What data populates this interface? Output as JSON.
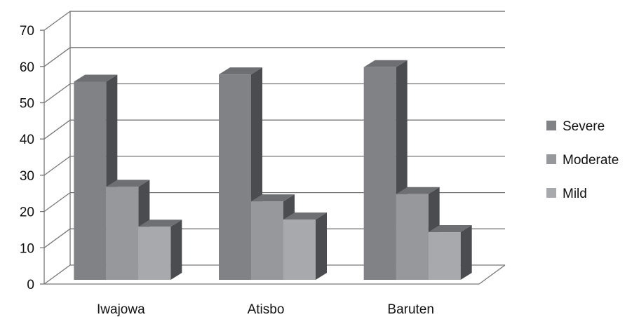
{
  "chart_data": {
    "type": "bar",
    "subtype": "3d-clustered-column",
    "categories": [
      "Iwajowa",
      "Atisbo",
      "Baruten"
    ],
    "series": [
      {
        "name": "Severe",
        "values": [
          56,
          58,
          60
        ],
        "color": "#808285"
      },
      {
        "name": "Moderate",
        "values": [
          27,
          23,
          25
        ],
        "color": "#96989B"
      },
      {
        "name": "Mild",
        "values": [
          16,
          18,
          14.5
        ],
        "color": "#A7A9AC"
      }
    ],
    "ylim": [
      0,
      70
    ],
    "yticks": [
      0,
      10,
      20,
      30,
      40,
      50,
      60,
      70
    ],
    "grid": true,
    "legend": "right",
    "title": "",
    "xlabel": "",
    "ylabel": ""
  }
}
